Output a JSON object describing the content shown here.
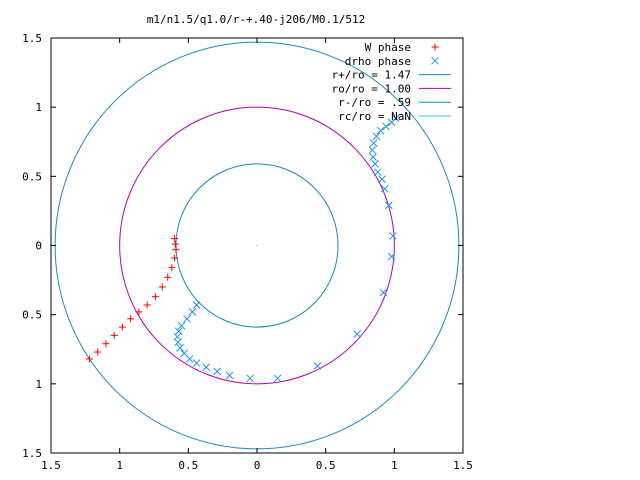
{
  "chart_data": {
    "type": "scatter",
    "title": "m1/n1.5/q1.0/r-+.40-j206/M0.1/512",
    "xlim": [
      -1.5,
      1.5
    ],
    "ylim": [
      -1.5,
      1.5
    ],
    "xticks": [
      -1.5,
      -1,
      -0.5,
      0,
      0.5,
      1,
      1.5
    ],
    "yticks": [
      -1.5,
      -1,
      -0.5,
      0,
      0.5,
      1,
      1.5
    ],
    "xtick_labels": [
      "1.5",
      "1",
      "0.5",
      "0",
      "0.5",
      "1",
      "1.5"
    ],
    "ytick_labels": [
      "1.5",
      "1",
      "0.5",
      "0",
      "0.5",
      "1",
      "1.5"
    ],
    "grid": false,
    "legend_position": "top-right",
    "colors": {
      "w_phase": "#ff0000",
      "drho_phase": "#1e90ff",
      "r_plus": "#1f87c0",
      "ro": "#b000b0",
      "r_minus": "#1f87c0",
      "rc": "#33c8c8"
    },
    "series": [
      {
        "name": "W phase",
        "kind": "points",
        "marker": "plus",
        "x": [
          -1.22,
          -1.16,
          -1.1,
          -1.04,
          -0.98,
          -0.92,
          -0.86,
          -0.8,
          -0.74,
          -0.69,
          -0.65,
          -0.62,
          -0.6,
          -0.59,
          -0.595,
          -0.6
        ],
        "y": [
          -0.82,
          -0.77,
          -0.71,
          -0.65,
          -0.59,
          -0.53,
          -0.48,
          -0.43,
          -0.37,
          -0.3,
          -0.23,
          -0.16,
          -0.09,
          -0.03,
          0.01,
          0.05
        ]
      },
      {
        "name": "drho phase",
        "kind": "points",
        "marker": "cross",
        "x": [
          -0.44,
          -0.47,
          -0.51,
          -0.55,
          -0.57,
          -0.58,
          -0.575,
          -0.56,
          -0.53,
          -0.49,
          -0.44,
          -0.37,
          -0.29,
          -0.2,
          -0.05,
          0.15,
          0.44,
          0.73,
          0.92,
          0.98,
          0.99,
          0.96,
          0.93,
          0.91,
          0.88,
          0.86,
          0.845,
          0.84,
          0.85,
          0.87,
          0.9,
          0.94,
          0.98,
          1.01
        ],
        "y": [
          -0.43,
          -0.48,
          -0.53,
          -0.58,
          -0.62,
          -0.66,
          -0.7,
          -0.74,
          -0.78,
          -0.82,
          -0.85,
          -0.88,
          -0.91,
          -0.94,
          -0.96,
          -0.96,
          -0.87,
          -0.64,
          -0.34,
          -0.08,
          0.07,
          0.29,
          0.41,
          0.48,
          0.53,
          0.59,
          0.64,
          0.69,
          0.74,
          0.79,
          0.83,
          0.86,
          0.89,
          0.92
        ]
      },
      {
        "name": "r+/ro = 1.47",
        "kind": "circle",
        "radius": 1.47
      },
      {
        "name": "ro/ro = 1.00",
        "kind": "circle",
        "radius": 1.0
      },
      {
        "name": "r-/ro = .59",
        "kind": "circle",
        "radius": 0.59
      },
      {
        "name": "rc/ro = NaN",
        "kind": "circle",
        "radius": null
      }
    ]
  }
}
